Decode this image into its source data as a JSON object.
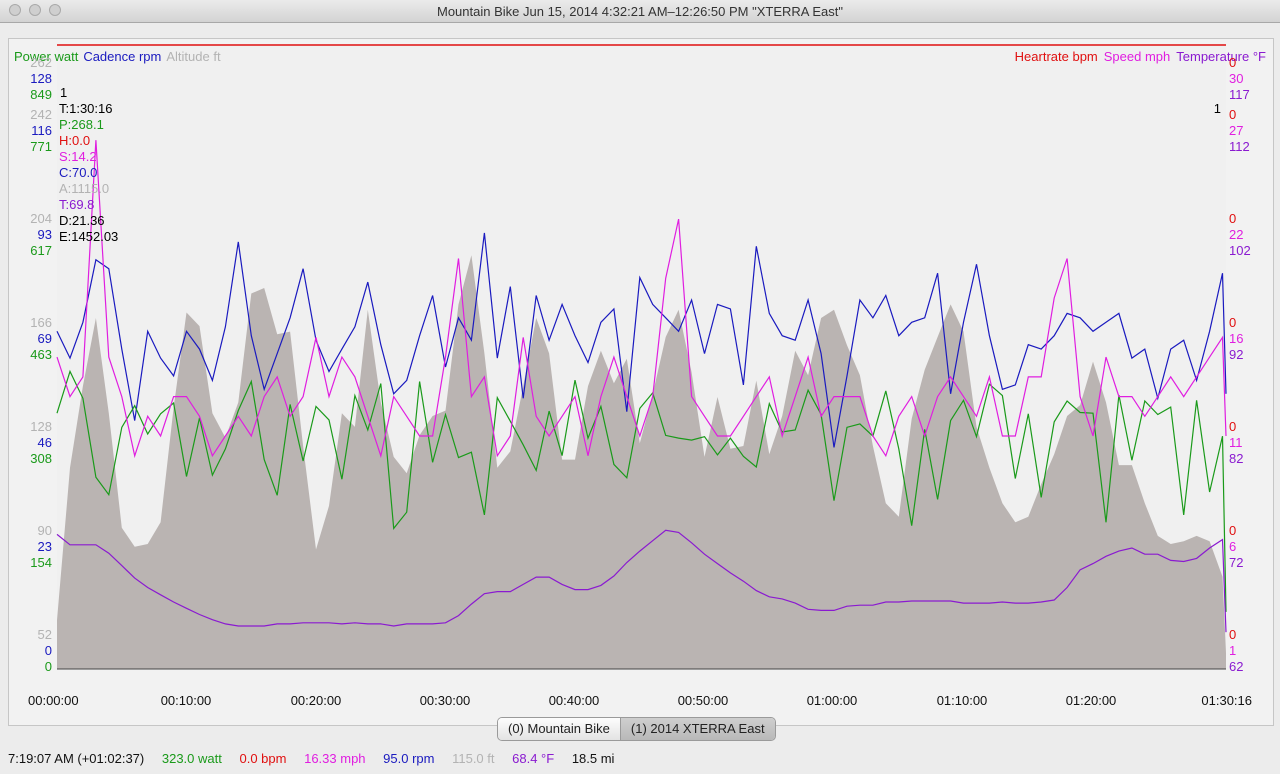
{
  "window": {
    "title": "Mountain Bike Jun 15, 2014 4:32:21 AM–12:26:50 PM \"XTERRA East\""
  },
  "colors": {
    "power": "#1a9a1a",
    "cadence": "#1a1abf",
    "altitude": "#b3b3b3",
    "heartrate": "#e01010",
    "speed": "#e01ee0",
    "temperature": "#8a1ad0",
    "altitude_fill": "#bab4b2",
    "plot_bg": "#f0f0f0"
  },
  "legend": {
    "left": [
      {
        "label": "Power watt",
        "color": "#1a9a1a"
      },
      {
        "label": "Cadence rpm",
        "color": "#1a1abf"
      },
      {
        "label": "Altitude ft",
        "color": "#b3b3b3"
      }
    ],
    "right": [
      {
        "label": "Heartrate bpm",
        "color": "#e01010"
      },
      {
        "label": "Speed mph",
        "color": "#e01ee0"
      },
      {
        "label": "Temperature °F",
        "color": "#8a1ad0"
      }
    ]
  },
  "cursor": {
    "index": "1",
    "lines": [
      {
        "text": "T:1:30:16",
        "color": "#000000"
      },
      {
        "text": "P:268.1",
        "color": "#1a9a1a"
      },
      {
        "text": "H:0.0",
        "color": "#e01010"
      },
      {
        "text": "S:14.2",
        "color": "#e01ee0"
      },
      {
        "text": "C:70.0",
        "color": "#1a1abf"
      },
      {
        "text": "A:1115.0",
        "color": "#b3b3b3"
      },
      {
        "text": "T:69.8",
        "color": "#8a1ad0"
      },
      {
        "text": "D:21.36",
        "color": "#000000"
      },
      {
        "text": "E:1452.03",
        "color": "#000000"
      }
    ],
    "right_index": "1"
  },
  "chart_data": {
    "type": "line",
    "x_label": "",
    "x_ticks": [
      "00:00:00",
      "00:10:00",
      "00:20:00",
      "00:30:00",
      "00:40:00",
      "00:50:00",
      "01:00:00",
      "01:10:00",
      "01:20:00",
      "01:30:16"
    ],
    "x_range_minutes": [
      0,
      90.27
    ],
    "left_axes": {
      "altitude": [
        "262",
        "242",
        "204",
        "166",
        "128",
        "90",
        "52"
      ],
      "cadence": [
        "128",
        "116",
        "93",
        "69",
        "46",
        "23",
        "0"
      ],
      "power": [
        "849",
        "771",
        "617",
        "463",
        "308",
        "154",
        "0"
      ]
    },
    "right_axes": {
      "heartrate": [
        "0",
        "0",
        "0",
        "0",
        "0",
        "0",
        "0"
      ],
      "speed": [
        "30",
        "27",
        "22",
        "16",
        "11",
        "6",
        "1"
      ],
      "temperature": [
        "117",
        "112",
        "102",
        "92",
        "82",
        "72",
        "62"
      ]
    },
    "series": [
      {
        "name": "Altitude ft",
        "axis": "altitude",
        "ylim": [
          0,
          262
        ],
        "x": [
          0,
          1,
          2,
          3,
          4,
          5,
          6,
          7,
          8,
          9,
          10,
          11,
          12,
          13,
          14,
          15,
          16,
          17,
          18,
          19,
          20,
          21,
          22,
          23,
          24,
          25,
          26,
          27,
          28,
          29,
          30,
          31,
          32,
          33,
          34,
          35,
          36,
          37,
          38,
          39,
          40,
          41,
          42,
          43,
          44,
          45,
          46,
          47,
          48,
          49,
          50,
          51,
          52,
          53,
          54,
          55,
          56,
          57,
          58,
          59,
          60,
          61,
          62,
          63,
          64,
          65,
          66,
          67,
          68,
          69,
          70,
          71,
          72,
          73,
          74,
          75,
          76,
          77,
          78,
          79,
          80,
          81,
          82,
          83,
          84,
          85,
          86,
          87,
          88,
          89,
          90,
          90.27
        ],
        "values": [
          64,
          120,
          150,
          175,
          140,
          98,
          91,
          92,
          100,
          142,
          177,
          172,
          140,
          131,
          144,
          184,
          186,
          169,
          170,
          128,
          90,
          106,
          140,
          135,
          178,
          144,
          124,
          118,
          132,
          139,
          141,
          180,
          198,
          162,
          120,
          126,
          150,
          175,
          162,
          123,
          123,
          150,
          163,
          151,
          160,
          129,
          147,
          168,
          178,
          155,
          124,
          146,
          127,
          128,
          152,
          125,
          139,
          163,
          154,
          175,
          178,
          165,
          154,
          128,
          107,
          102,
          138,
          156,
          168,
          180,
          170,
          135,
          120,
          107,
          100,
          102,
          114,
          125,
          139,
          143,
          159,
          144,
          121,
          121,
          107,
          95,
          92,
          93,
          95,
          93,
          80,
          52
        ]
      },
      {
        "name": "Cadence rpm",
        "axis": "cadence",
        "x": [
          0,
          1,
          2,
          3,
          4,
          5,
          6,
          7,
          8,
          9,
          10,
          11,
          12,
          13,
          14,
          15,
          16,
          17,
          18,
          19,
          20,
          21,
          22,
          23,
          24,
          25,
          26,
          27,
          28,
          29,
          30,
          31,
          32,
          33,
          34,
          35,
          36,
          37,
          38,
          39,
          40,
          41,
          42,
          43,
          44,
          45,
          46,
          47,
          48,
          49,
          50,
          51,
          52,
          53,
          54,
          55,
          56,
          57,
          58,
          59,
          60,
          61,
          62,
          63,
          64,
          65,
          66,
          67,
          68,
          69,
          70,
          71,
          72,
          73,
          74,
          75,
          76,
          77,
          78,
          79,
          80,
          81,
          82,
          83,
          84,
          85,
          86,
          87,
          88,
          89,
          90,
          90.27
        ],
        "values": [
          72,
          66,
          74,
          88,
          86,
          68,
          52,
          72,
          66,
          62,
          72,
          68,
          61,
          73,
          92,
          71,
          59,
          67,
          75,
          86,
          70,
          63,
          68,
          73,
          83,
          69,
          58,
          61,
          71,
          80,
          64,
          75,
          70,
          94,
          66,
          82,
          57,
          80,
          70,
          78,
          71,
          65,
          74,
          77,
          54,
          84,
          78,
          75,
          72,
          79,
          67,
          78,
          77,
          60,
          91,
          76,
          71,
          70,
          79,
          67,
          46,
          62,
          79,
          75,
          80,
          71,
          74,
          75,
          85,
          58,
          74,
          87,
          71,
          59,
          60,
          69,
          68,
          71,
          76,
          75,
          72,
          74,
          76,
          66,
          68,
          57,
          68,
          70,
          61,
          72,
          85,
          58
        ]
      },
      {
        "name": "Power watt",
        "axis": "power",
        "x": [
          0,
          1,
          2,
          3,
          4,
          5,
          6,
          7,
          8,
          9,
          10,
          11,
          12,
          13,
          14,
          15,
          16,
          17,
          18,
          19,
          20,
          21,
          22,
          23,
          24,
          25,
          26,
          27,
          28,
          29,
          30,
          31,
          32,
          33,
          34,
          35,
          36,
          37,
          38,
          39,
          40,
          41,
          42,
          43,
          44,
          45,
          46,
          47,
          48,
          49,
          50,
          51,
          52,
          53,
          54,
          55,
          56,
          57,
          58,
          59,
          60,
          61,
          62,
          63,
          64,
          65,
          66,
          67,
          68,
          69,
          70,
          71,
          72,
          73,
          74,
          75,
          76,
          77,
          78,
          79,
          80,
          81,
          82,
          83,
          84,
          85,
          86,
          87,
          88,
          89,
          90,
          90.27
        ],
        "values": [
          356,
          418,
          378,
          261,
          235,
          335,
          367,
          325,
          355,
          371,
          262,
          349,
          264,
          303,
          360,
          403,
          287,
          234,
          369,
          285,
          366,
          346,
          258,
          382,
          331,
          400,
          185,
          209,
          403,
          283,
          354,
          290,
          298,
          205,
          379,
          344,
          309,
          271,
          359,
          293,
          405,
          319,
          366,
          280,
          260,
          363,
          386,
          323,
          319,
          316,
          321,
          294,
          319,
          292,
          276,
          370,
          328,
          331,
          390,
          354,
          226,
          335,
          340,
          322,
          389,
          303,
          189,
          332,
          228,
          345,
          375,
          321,
          399,
          382,
          259,
          355,
          231,
          343,
          374,
          357,
          356,
          194,
          383,
          286,
          374,
          354,
          365,
          205,
          375,
          239,
          322,
          61
        ]
      },
      {
        "name": "Heartrate bpm",
        "axis": "heartrate",
        "x": [
          0,
          90.27
        ],
        "values": [
          0,
          0
        ]
      },
      {
        "name": "Speed mph",
        "axis": "speed",
        "x": [
          0,
          1,
          2,
          3,
          4,
          5,
          6,
          7,
          8,
          9,
          10,
          11,
          12,
          13,
          14,
          15,
          16,
          17,
          18,
          19,
          20,
          21,
          22,
          23,
          24,
          25,
          26,
          27,
          28,
          29,
          30,
          31,
          32,
          33,
          34,
          35,
          36,
          37,
          38,
          39,
          40,
          41,
          42,
          43,
          44,
          45,
          46,
          47,
          48,
          49,
          50,
          51,
          52,
          53,
          54,
          55,
          56,
          57,
          58,
          59,
          60,
          61,
          62,
          63,
          64,
          65,
          66,
          67,
          68,
          69,
          70,
          71,
          72,
          73,
          74,
          75,
          76,
          77,
          78,
          79,
          80,
          81,
          82,
          83,
          84,
          85,
          86,
          87,
          88,
          89,
          90,
          90.27
        ],
        "values": [
          16,
          14,
          15,
          27,
          16,
          14,
          11,
          13,
          12,
          14,
          14,
          13,
          11,
          12,
          13,
          12,
          14,
          15,
          13,
          14,
          17,
          14,
          16,
          15,
          13,
          11,
          14,
          13,
          12,
          12,
          16,
          21,
          14,
          15,
          11,
          12,
          17,
          13,
          12,
          13,
          14,
          11,
          14,
          16,
          14,
          12,
          14,
          20,
          23,
          14,
          13,
          12,
          12,
          13,
          14,
          15,
          12,
          14,
          16,
          13,
          14,
          14,
          14,
          12,
          11,
          13,
          14,
          12,
          14,
          15,
          14,
          13,
          15,
          12,
          12,
          15,
          15,
          19,
          21,
          14,
          12,
          16,
          14,
          14,
          13,
          14,
          15,
          14,
          15,
          16,
          17,
          12
        ]
      },
      {
        "name": "Temperature °F",
        "axis": "temperature",
        "x": [
          0,
          1,
          2,
          3,
          4,
          5,
          6,
          7,
          8,
          9,
          10,
          11,
          12,
          13,
          14,
          15,
          16,
          17,
          18,
          19,
          20,
          21,
          22,
          23,
          24,
          25,
          26,
          27,
          28,
          29,
          30,
          31,
          32,
          33,
          34,
          35,
          36,
          37,
          38,
          39,
          40,
          41,
          42,
          43,
          44,
          45,
          46,
          47,
          48,
          49,
          50,
          51,
          52,
          53,
          54,
          55,
          56,
          57,
          58,
          59,
          60,
          61,
          62,
          63,
          64,
          65,
          66,
          67,
          68,
          69,
          70,
          71,
          72,
          73,
          74,
          75,
          76,
          77,
          78,
          79,
          80,
          81,
          82,
          83,
          84,
          85,
          86,
          87,
          88,
          89,
          90,
          90.27
        ],
        "values": [
          73.4,
          72.4,
          72.4,
          72.4,
          71.6,
          70.4,
          69.2,
          68.3,
          67.6,
          66.9,
          66.3,
          65.7,
          65.2,
          64.8,
          64.6,
          64.6,
          64.6,
          64.8,
          64.8,
          64.9,
          64.9,
          64.9,
          64.8,
          64.9,
          64.8,
          64.8,
          64.6,
          64.8,
          64.8,
          64.8,
          64.9,
          65.6,
          66.7,
          67.7,
          67.9,
          67.9,
          68.6,
          69.3,
          69.3,
          68.6,
          68.1,
          68.1,
          68.5,
          69.4,
          70.7,
          71.8,
          72.8,
          73.8,
          73.6,
          72.6,
          71.5,
          70.6,
          69.7,
          68.9,
          68.0,
          67.4,
          67.2,
          66.8,
          66.2,
          66.1,
          66.1,
          66.5,
          66.6,
          66.6,
          66.9,
          66.9,
          67.0,
          67.0,
          67.0,
          67.0,
          66.8,
          66.8,
          66.8,
          66.9,
          66.8,
          66.8,
          66.9,
          67.1,
          68.3,
          70.0,
          70.6,
          71.3,
          71.8,
          72.1,
          71.5,
          71.5,
          70.9,
          70.8,
          71.1,
          72.1,
          72.9,
          64.0
        ]
      }
    ]
  },
  "tabs": [
    {
      "label": "(0) Mountain Bike"
    },
    {
      "label": "(1) 2014 XTERRA East"
    }
  ],
  "status": {
    "time": "7:19:07 AM (+01:02:37)",
    "power": "323.0 watt",
    "heartrate": "0.0 bpm",
    "speed": "16.33 mph",
    "cadence": "95.0 rpm",
    "altitude": "115.0 ft",
    "temperature": "68.4 °F",
    "distance": "18.5 mi"
  }
}
